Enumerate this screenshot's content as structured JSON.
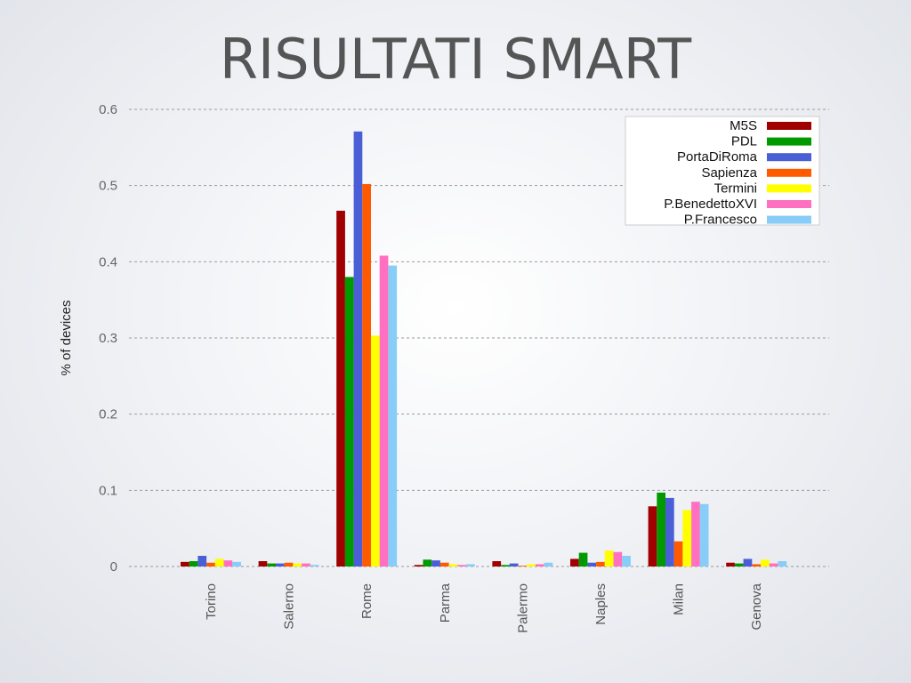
{
  "page_title": "RISULTATI SMART",
  "chart_data": {
    "type": "bar",
    "title": "",
    "xlabel": "",
    "ylabel": "% of devices",
    "ylim": [
      0,
      0.6
    ],
    "yticks": [
      "0",
      "0.1",
      "0.2",
      "0.3",
      "0.4",
      "0.5",
      "0.6"
    ],
    "grid": true,
    "legend_position": "top-right",
    "categories": [
      "Torino",
      "Salerno",
      "Rome",
      "Parma",
      "Palermo",
      "Naples",
      "Milan",
      "Genova"
    ],
    "series": [
      {
        "name": "M5S",
        "color": "#a00000",
        "values": [
          0.006,
          0.007,
          0.467,
          0.002,
          0.007,
          0.01,
          0.079,
          0.005
        ]
      },
      {
        "name": "PDL",
        "color": "#009a00",
        "values": [
          0.007,
          0.004,
          0.38,
          0.009,
          0.002,
          0.018,
          0.097,
          0.004
        ]
      },
      {
        "name": "PortaDiRoma",
        "color": "#4a5fd6",
        "values": [
          0.014,
          0.004,
          0.571,
          0.008,
          0.004,
          0.005,
          0.09,
          0.01
        ]
      },
      {
        "name": "Sapienza",
        "color": "#ff5a00",
        "values": [
          0.005,
          0.005,
          0.502,
          0.005,
          0.001,
          0.006,
          0.033,
          0.003
        ]
      },
      {
        "name": "Termini",
        "color": "#ffff00",
        "values": [
          0.01,
          0.004,
          0.303,
          0.003,
          0.003,
          0.021,
          0.074,
          0.009
        ]
      },
      {
        "name": "P.BenedettoXVI",
        "color": "#ff70c0",
        "values": [
          0.008,
          0.004,
          0.408,
          0.002,
          0.003,
          0.019,
          0.085,
          0.004
        ]
      },
      {
        "name": "P.Francesco",
        "color": "#88ccf8",
        "values": [
          0.006,
          0.002,
          0.395,
          0.003,
          0.005,
          0.014,
          0.082,
          0.007
        ]
      }
    ]
  }
}
